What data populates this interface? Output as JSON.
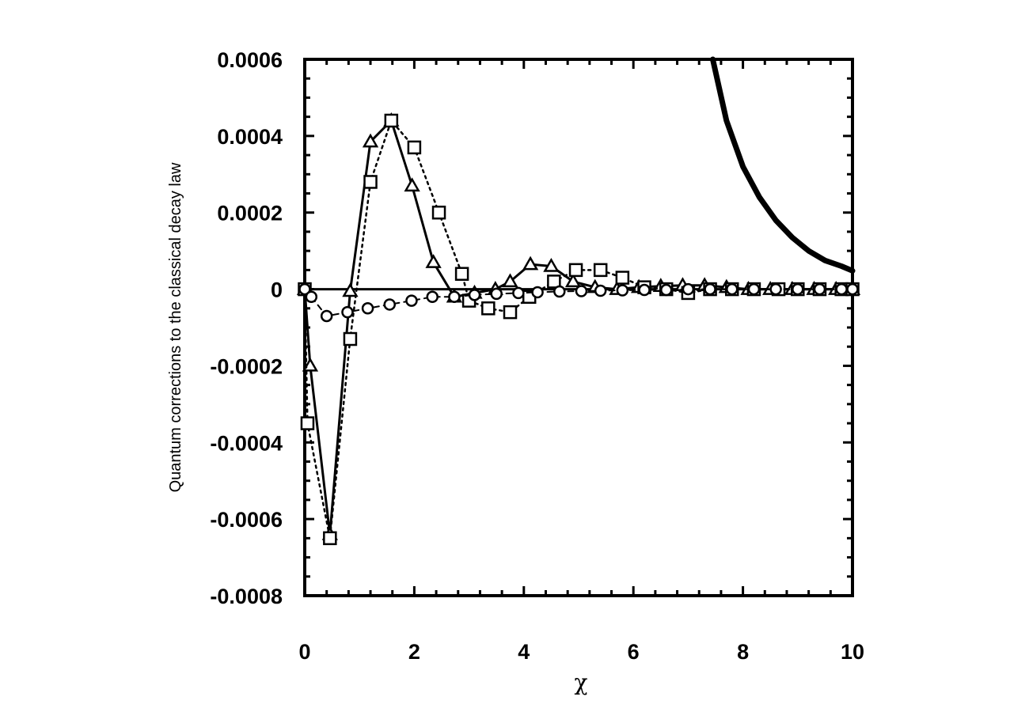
{
  "chart_data": {
    "type": "line",
    "title": "",
    "xlabel": "χ",
    "ylabel": "Quantum corrections to the classical decay law",
    "xlim": [
      0,
      10
    ],
    "ylim": [
      -0.0008,
      0.0006
    ],
    "x_ticks": [
      0,
      2,
      4,
      6,
      8,
      10
    ],
    "x_tick_labels": [
      "0",
      "2",
      "4",
      "6",
      "8",
      "10"
    ],
    "y_ticks": [
      0.0006,
      0.0004,
      0.0002,
      0,
      -0.0002,
      -0.0004,
      -0.0006,
      -0.0008
    ],
    "y_tick_labels": [
      "0.0006",
      "0.0004",
      "0.0002",
      "0",
      "-0.0002",
      "-0.0004",
      "-0.0006",
      "-0.0008"
    ],
    "grid": false,
    "legend": "none",
    "series": [
      {
        "marker": "triangle",
        "line_style": "solid",
        "x": [
          0,
          0.1,
          0.46,
          0.83,
          1.2,
          1.58,
          1.96,
          2.35,
          2.73,
          3.1,
          3.48,
          3.75,
          4.12,
          4.5,
          4.9,
          5.3,
          5.7,
          6.1,
          6.5,
          6.9,
          7.3,
          7.7,
          8.1,
          8.5,
          8.9,
          9.3,
          9.7,
          10
        ],
        "y": [
          0,
          -0.0002,
          -0.00064,
          -5e-06,
          0.000385,
          0.00044,
          0.00027,
          7e-05,
          -2e-05,
          -1e-05,
          0.0,
          2e-05,
          6.5e-05,
          6e-05,
          2e-05,
          5e-06,
          0.0,
          5e-06,
          8e-06,
          1e-05,
          1e-05,
          5e-06,
          0.0,
          0.0,
          0.0,
          0.0,
          0.0,
          0.0
        ]
      },
      {
        "marker": "square",
        "line_style": "dotted",
        "x": [
          0,
          0.05,
          0.46,
          0.83,
          1.2,
          1.58,
          2.0,
          2.45,
          2.87,
          3.0,
          3.35,
          3.75,
          4.1,
          4.55,
          4.95,
          5.4,
          5.8,
          6.2,
          6.6,
          7.0,
          7.4,
          7.8,
          8.2,
          8.65,
          9.0,
          9.4,
          9.8,
          10
        ],
        "y": [
          0,
          -0.00035,
          -0.00065,
          -0.00013,
          0.00028,
          0.00044,
          0.00037,
          0.0002,
          4e-05,
          -3e-05,
          -5e-05,
          -6e-05,
          -2e-05,
          2e-05,
          5e-05,
          5e-05,
          3e-05,
          5e-06,
          0.0,
          -1e-05,
          0.0,
          0.0,
          0.0,
          0.0,
          0.0,
          0.0,
          0.0,
          0.0
        ]
      },
      {
        "marker": "circle",
        "line_style": "dashed",
        "x": [
          0,
          0.12,
          0.4,
          0.78,
          1.15,
          1.55,
          1.95,
          2.33,
          2.73,
          3.1,
          3.5,
          3.9,
          4.25,
          4.65,
          5.05,
          5.4,
          5.8,
          6.2,
          6.6,
          7.0,
          7.4,
          7.8,
          8.2,
          8.6,
          9.0,
          9.4,
          9.8,
          10
        ],
        "y": [
          0,
          -2e-05,
          -7e-05,
          -6e-05,
          -5e-05,
          -4e-05,
          -3e-05,
          -2e-05,
          -2e-05,
          -1.5e-05,
          -1.2e-05,
          -1e-05,
          -8e-06,
          -6e-06,
          -5e-06,
          -4e-06,
          -3e-06,
          -2e-06,
          -2e-06,
          0.0,
          0.0,
          0.0,
          0.0,
          0.0,
          0.0,
          0.0,
          0.0,
          0.0
        ]
      },
      {
        "marker": "none",
        "line_style": "solid-heavy",
        "x": [
          7.45,
          7.7,
          8.0,
          8.3,
          8.6,
          8.9,
          9.2,
          9.5,
          9.8,
          10
        ],
        "y": [
          0.0006,
          0.00044,
          0.00032,
          0.00024,
          0.00018,
          0.000135,
          0.0001,
          7.5e-05,
          6e-05,
          4.8e-05
        ]
      }
    ]
  }
}
